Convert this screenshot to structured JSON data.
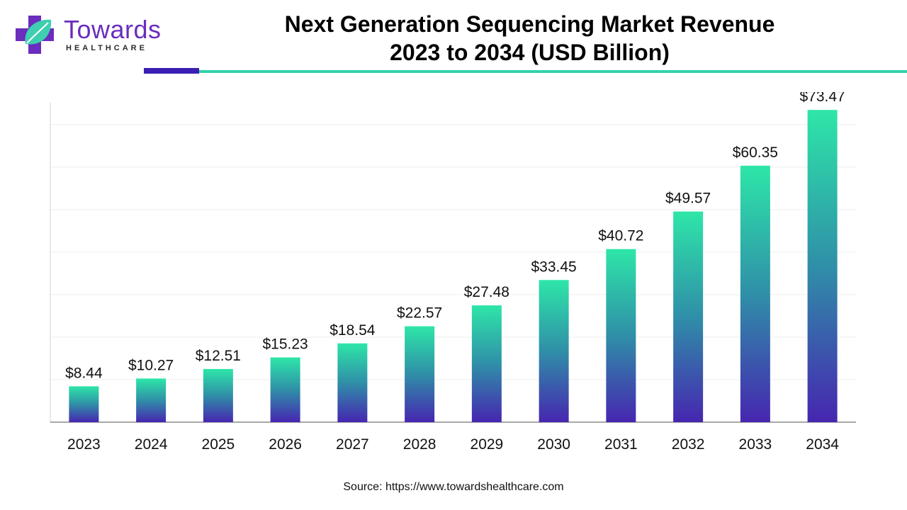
{
  "brand": {
    "name": "Towards",
    "tagline": "HEALTHCARE",
    "logo_icon": "cross-leaf-icon",
    "colors": {
      "purple": "#6a2dbd",
      "deep_purple": "#3b1fb2",
      "teal": "#33d2ab"
    }
  },
  "title_line1": "Next Generation Sequencing Market Revenue",
  "title_line2": "2023 to 2034 (USD Billion)",
  "source": "Source: https://www.towardshealthcare.com",
  "chart_data": {
    "type": "bar",
    "categories": [
      "2023",
      "2024",
      "2025",
      "2026",
      "2027",
      "2028",
      "2029",
      "2030",
      "2031",
      "2032",
      "2033",
      "2034"
    ],
    "values": [
      8.44,
      10.27,
      12.51,
      15.23,
      18.54,
      22.57,
      27.48,
      33.45,
      40.72,
      49.57,
      60.35,
      73.47
    ],
    "value_labels": [
      "$8.44",
      "$10.27",
      "$12.51",
      "$15.23",
      "$18.54",
      "$22.57",
      "$27.48",
      "$33.45",
      "$40.72",
      "$49.57",
      "$60.35",
      "$73.47"
    ],
    "ylim": [
      0,
      80
    ],
    "grid": true,
    "bar_gradient": {
      "top": "#2ee6a8",
      "middle": "#2f8fa8",
      "bottom": "#4626b0"
    }
  }
}
